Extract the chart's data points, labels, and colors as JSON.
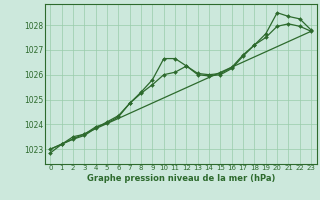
{
  "line1_x": [
    0,
    1,
    2,
    3,
    4,
    5,
    6,
    7,
    8,
    9,
    10,
    11,
    12,
    13,
    14,
    15,
    16,
    17,
    18,
    19,
    20,
    21,
    22,
    23
  ],
  "line1_y": [
    1022.85,
    1023.2,
    1023.5,
    1023.6,
    1023.9,
    1024.05,
    1024.3,
    1024.85,
    1025.3,
    1025.8,
    1026.65,
    1026.65,
    1026.35,
    1026.0,
    1025.95,
    1026.0,
    1026.25,
    1026.75,
    1027.2,
    1027.65,
    1028.5,
    1028.35,
    1028.25,
    1027.8
  ],
  "line2_x": [
    0,
    1,
    2,
    3,
    4,
    5,
    6,
    7,
    8,
    9,
    10,
    11,
    12,
    13,
    14,
    15,
    16,
    17,
    18,
    19,
    20,
    21,
    22,
    23
  ],
  "line2_y": [
    1023.0,
    1023.2,
    1023.4,
    1023.55,
    1023.85,
    1024.1,
    1024.35,
    1024.85,
    1025.25,
    1025.6,
    1026.0,
    1026.1,
    1026.35,
    1026.05,
    1026.0,
    1026.05,
    1026.3,
    1026.8,
    1027.2,
    1027.5,
    1027.95,
    1028.05,
    1027.95,
    1027.75
  ],
  "line3_x": [
    0,
    23
  ],
  "line3_y": [
    1023.0,
    1027.75
  ],
  "line_color": "#2d6a2d",
  "bg_color": "#cce8dc",
  "grid_color": "#99ccaa",
  "xlabel": "Graphe pression niveau de la mer (hPa)",
  "xlim": [
    -0.5,
    23.5
  ],
  "ylim": [
    1022.4,
    1028.85
  ],
  "yticks": [
    1023,
    1024,
    1025,
    1026,
    1027,
    1028
  ],
  "xticks": [
    0,
    1,
    2,
    3,
    4,
    5,
    6,
    7,
    8,
    9,
    10,
    11,
    12,
    13,
    14,
    15,
    16,
    17,
    18,
    19,
    20,
    21,
    22,
    23
  ]
}
